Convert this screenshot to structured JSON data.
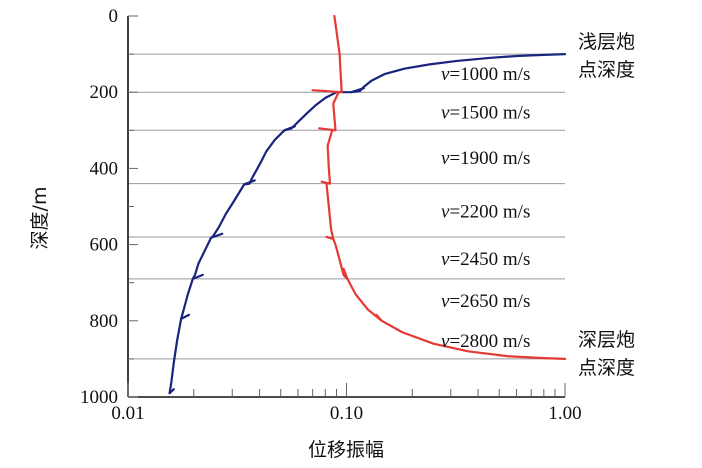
{
  "chart_data": {
    "type": "line",
    "xlabel": "位移振幅",
    "ylabel": "深度/m",
    "x_scale": "log",
    "xlim": [
      0.01,
      1.0
    ],
    "ylim": [
      0,
      1000
    ],
    "x_ticks": [
      {
        "value": 0.01,
        "label": "0.01"
      },
      {
        "value": 0.1,
        "label": "0.10"
      },
      {
        "value": 1.0,
        "label": "1.00"
      }
    ],
    "y_ticks": [
      {
        "value": 0,
        "label": "0"
      },
      {
        "value": 200,
        "label": "200"
      },
      {
        "value": 400,
        "label": "400"
      },
      {
        "value": 600,
        "label": "600"
      },
      {
        "value": 800,
        "label": "800"
      },
      {
        "value": 1000,
        "label": "1000"
      }
    ],
    "layer_boundaries": [
      100,
      200,
      300,
      440,
      580,
      690,
      900
    ],
    "layer_velocities": [
      {
        "v": "v",
        "text": "=1000 m/s",
        "depth": 150
      },
      {
        "v": "v",
        "text": "=1500 m/s",
        "depth": 250
      },
      {
        "v": "v",
        "text": "=1900 m/s",
        "depth": 370
      },
      {
        "v": "v",
        "text": "=2200 m/s",
        "depth": 510
      },
      {
        "v": "v",
        "text": "=2450 m/s",
        "depth": 635
      },
      {
        "v": "v",
        "text": "=2650 m/s",
        "depth": 745
      },
      {
        "v": "v",
        "text": "=2800 m/s",
        "depth": 850
      }
    ],
    "annotations": {
      "shallow": [
        "浅层炮",
        "点深度"
      ],
      "deep": [
        "深层炮",
        "点深度"
      ]
    },
    "series": [
      {
        "color": "#1a237e",
        "points": [
          [
            1.0,
            100
          ],
          [
            0.8,
            102
          ],
          [
            0.6,
            105
          ],
          [
            0.45,
            110
          ],
          [
            0.32,
            118
          ],
          [
            0.24,
            127
          ],
          [
            0.185,
            138
          ],
          [
            0.15,
            152
          ],
          [
            0.13,
            170
          ],
          [
            0.12,
            186
          ],
          [
            0.115,
            197
          ],
          [
            0.105,
            200
          ],
          [
            0.09,
            200
          ],
          [
            0.08,
            215
          ],
          [
            0.072,
            235
          ],
          [
            0.066,
            255
          ],
          [
            0.06,
            278
          ],
          [
            0.056,
            295
          ],
          [
            0.052,
            300
          ],
          [
            0.047,
            325
          ],
          [
            0.043,
            355
          ],
          [
            0.04,
            390
          ],
          [
            0.037,
            425
          ],
          [
            0.036,
            440
          ],
          [
            0.034,
            442
          ],
          [
            0.031,
            480
          ],
          [
            0.028,
            520
          ],
          [
            0.026,
            555
          ],
          [
            0.0245,
            578
          ],
          [
            0.024,
            582
          ],
          [
            0.0225,
            615
          ],
          [
            0.021,
            650
          ],
          [
            0.0203,
            678
          ],
          [
            0.0198,
            690
          ],
          [
            0.0188,
            730
          ],
          [
            0.018,
            770
          ],
          [
            0.0175,
            795
          ],
          [
            0.0168,
            850
          ],
          [
            0.0162,
            910
          ],
          [
            0.0158,
            960
          ],
          [
            0.0155,
            990
          ]
        ],
        "kinks": [
          {
            "x": 0.105,
            "y": 200,
            "tail": 0.12,
            "dy": -4
          },
          {
            "x": 0.052,
            "y": 300,
            "tail": 0.058,
            "dy": -4
          },
          {
            "x": 0.034,
            "y": 442,
            "tail": 0.038,
            "dy": -4
          },
          {
            "x": 0.024,
            "y": 582,
            "tail": 0.027,
            "dy": -4
          },
          {
            "x": 0.0198,
            "y": 690,
            "tail": 0.022,
            "dy": -4
          },
          {
            "x": 0.0175,
            "y": 795,
            "tail": 0.019,
            "dy": -4
          },
          {
            "x": 0.0155,
            "y": 990,
            "tail": 0.0162,
            "dy": -4
          }
        ]
      },
      {
        "color": "#e53935",
        "points": [
          [
            0.088,
            0
          ],
          [
            0.09,
            40
          ],
          [
            0.093,
            100
          ],
          [
            0.094,
            150
          ],
          [
            0.095,
            198
          ],
          [
            0.092,
            200
          ],
          [
            0.087,
            230
          ],
          [
            0.088,
            265
          ],
          [
            0.089,
            298
          ],
          [
            0.086,
            300
          ],
          [
            0.082,
            340
          ],
          [
            0.083,
            400
          ],
          [
            0.084,
            438
          ],
          [
            0.081,
            440
          ],
          [
            0.083,
            500
          ],
          [
            0.085,
            560
          ],
          [
            0.087,
            585
          ],
          [
            0.089,
            600
          ],
          [
            0.093,
            640
          ],
          [
            0.097,
            680
          ],
          [
            0.101,
            690
          ],
          [
            0.11,
            730
          ],
          [
            0.125,
            770
          ],
          [
            0.145,
            800
          ],
          [
            0.18,
            830
          ],
          [
            0.25,
            860
          ],
          [
            0.36,
            880
          ],
          [
            0.55,
            893
          ],
          [
            0.8,
            898
          ],
          [
            1.0,
            900
          ]
        ],
        "kinks": [
          {
            "x": 0.095,
            "y": 200,
            "tail": 0.07,
            "dy": -2
          },
          {
            "x": 0.089,
            "y": 300,
            "tail": 0.075,
            "dy": -2
          },
          {
            "x": 0.084,
            "y": 440,
            "tail": 0.077,
            "dy": -2
          },
          {
            "x": 0.087,
            "y": 585,
            "tail": 0.081,
            "dy": -2
          },
          {
            "x": 0.101,
            "y": 690,
            "tail": 0.097,
            "dy": -10
          },
          {
            "x": 0.145,
            "y": 800,
            "tail": 0.137,
            "dy": -6
          }
        ]
      }
    ]
  }
}
